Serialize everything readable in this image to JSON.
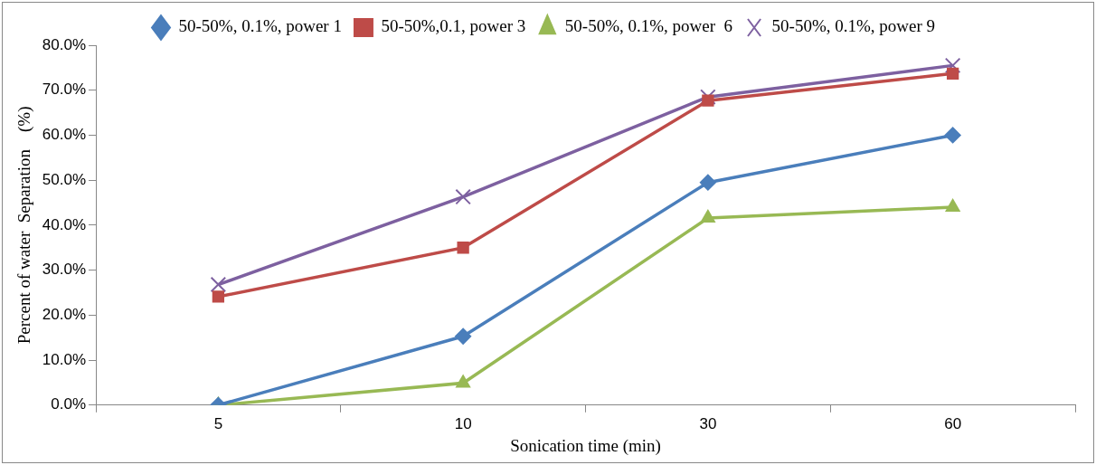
{
  "chart_data": {
    "type": "line",
    "xlabel": "Sonication time (min)",
    "ylabel": "Percent of water  Separation    (%)",
    "categories": [
      "5",
      "10",
      "30",
      "60"
    ],
    "series": [
      {
        "name": "50-50%, 0.1%, power 1",
        "color": "#4a7ebb",
        "marker": "diamond",
        "values": [
          0,
          15.3,
          49.5,
          60
        ]
      },
      {
        "name": "50-50%,0.1, power 3",
        "color": "#be4b48",
        "marker": "square",
        "values": [
          24.1,
          35,
          67.7,
          73.7
        ]
      },
      {
        "name": "50-50%, 0.1%, power  6",
        "color": "#98b954",
        "marker": "triangle",
        "values": [
          0,
          4.9,
          41.6,
          44
        ]
      },
      {
        "name": "50-50%, 0.1%, power 9",
        "color": "#7d60a0",
        "marker": "cross",
        "values": [
          26.8,
          46.3,
          68.5,
          75.5
        ]
      }
    ],
    "ylim": [
      0,
      80
    ],
    "yticks": [
      {
        "value": 0,
        "label": "0.0%"
      },
      {
        "value": 10,
        "label": "10.0%"
      },
      {
        "value": 20,
        "label": "20.0%"
      },
      {
        "value": 30,
        "label": "30.0%"
      },
      {
        "value": 40,
        "label": "40.0%"
      },
      {
        "value": 50,
        "label": "50.0%"
      },
      {
        "value": 60,
        "label": "60.0%"
      },
      {
        "value": 70,
        "label": "70.0%"
      },
      {
        "value": 80,
        "label": "80.0%"
      }
    ],
    "grid": false,
    "legend": "top",
    "line_style": "solid"
  }
}
